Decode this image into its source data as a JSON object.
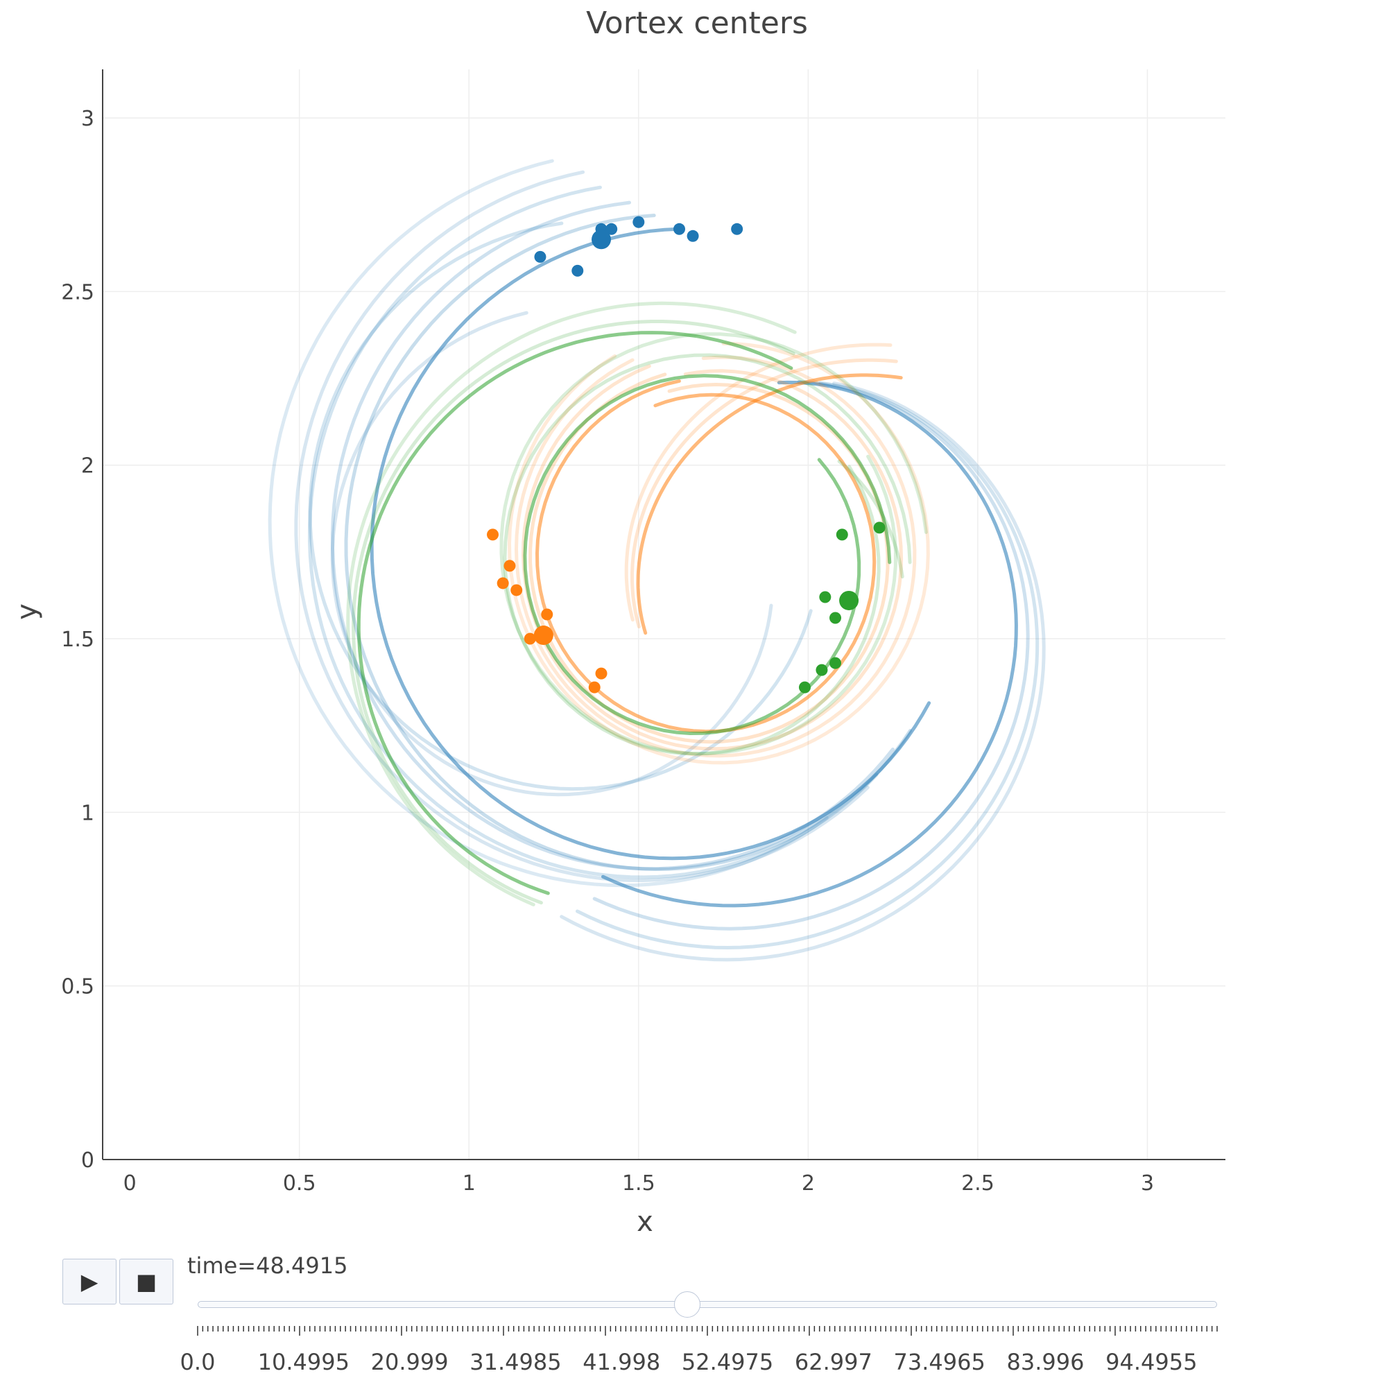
{
  "chart_data": {
    "type": "scatter",
    "title": "Vortex centers",
    "xlabel": "x",
    "ylabel": "y",
    "xlim": [
      -0.08,
      3.23
    ],
    "ylim": [
      0,
      3.14
    ],
    "xticks": [
      "0",
      "0.5",
      "1",
      "1.5",
      "2",
      "2.5",
      "3"
    ],
    "yticks": [
      "0",
      "0.5",
      "1",
      "1.5",
      "2",
      "2.5",
      "3"
    ],
    "grid": true,
    "series": [
      {
        "color": "#1f77b4",
        "current": {
          "x": 1.39,
          "y": 2.65
        },
        "points": [
          [
            1.21,
            2.6
          ],
          [
            1.32,
            2.56
          ],
          [
            1.39,
            2.68
          ],
          [
            1.42,
            2.68
          ],
          [
            1.5,
            2.7
          ],
          [
            1.62,
            2.68
          ],
          [
            1.66,
            2.66
          ],
          [
            1.79,
            2.68
          ]
        ],
        "trails": [
          {
            "center": [
              1.62,
              1.74
            ],
            "r0": 0.94,
            "r1": 0.85,
            "a0": 90,
            "a1": 330,
            "opacity": 0.55
          },
          {
            "center": [
              1.58,
              1.74
            ],
            "r0": 0.98,
            "r1": 0.88,
            "a0": 92,
            "a1": 325,
            "opacity": 0.25
          },
          {
            "center": [
              1.56,
              1.76
            ],
            "r0": 1.0,
            "r1": 0.9,
            "a0": 95,
            "a1": 320,
            "opacity": 0.22
          },
          {
            "center": [
              1.53,
              1.78
            ],
            "r0": 1.03,
            "r1": 0.95,
            "a0": 98,
            "a1": 315,
            "opacity": 0.2
          },
          {
            "center": [
              1.52,
              1.8
            ],
            "r0": 1.06,
            "r1": 0.98,
            "a0": 100,
            "a1": 312,
            "opacity": 0.18
          },
          {
            "center": [
              1.47,
              1.82
            ],
            "r0": 1.08,
            "r1": 1.02,
            "a0": 102,
            "a1": 305,
            "opacity": 0.16
          },
          {
            "center": [
              1.35,
              1.82
            ],
            "r0": 0.88,
            "r1": 0.7,
            "a0": 95,
            "a1": 340,
            "opacity": 0.2
          },
          {
            "center": [
              1.3,
              1.7
            ],
            "r0": 0.75,
            "r1": 0.6,
            "a0": 100,
            "a1": 350,
            "opacity": 0.18
          },
          {
            "center": [
              1.86,
              1.62
            ],
            "r0": 0.93,
            "r1": 0.62,
            "a0": 240,
            "a1": 445,
            "opacity": 0.55
          },
          {
            "center": [
              1.86,
              1.6
            ],
            "r0": 0.98,
            "r1": 0.65,
            "a0": 240,
            "a1": 440,
            "opacity": 0.22
          },
          {
            "center": [
              1.86,
              1.58
            ],
            "r0": 1.02,
            "r1": 0.68,
            "a0": 238,
            "a1": 435,
            "opacity": 0.2
          },
          {
            "center": [
              1.86,
              1.57
            ],
            "r0": 1.05,
            "r1": 0.7,
            "a0": 236,
            "a1": 432,
            "opacity": 0.18
          }
        ]
      },
      {
        "color": "#ff7f0e",
        "current": {
          "x": 1.22,
          "y": 1.51
        },
        "points": [
          [
            1.07,
            1.8
          ],
          [
            1.12,
            1.71
          ],
          [
            1.1,
            1.66
          ],
          [
            1.14,
            1.64
          ],
          [
            1.23,
            1.57
          ],
          [
            1.18,
            1.5
          ],
          [
            1.39,
            1.4
          ],
          [
            1.37,
            1.36
          ]
        ],
        "trails": [
          {
            "center": [
              1.71,
              1.73
            ],
            "r0": 0.52,
            "r1": 0.47,
            "a0": 100,
            "a1": 470,
            "opacity": 0.55
          },
          {
            "center": [
              1.72,
              1.73
            ],
            "r0": 0.55,
            "r1": 0.5,
            "a0": 105,
            "a1": 465,
            "opacity": 0.22
          },
          {
            "center": [
              1.73,
              1.74
            ],
            "r0": 0.58,
            "r1": 0.53,
            "a0": 110,
            "a1": 460,
            "opacity": 0.2
          },
          {
            "center": [
              1.74,
              1.75
            ],
            "r0": 0.61,
            "r1": 0.56,
            "a0": 115,
            "a1": 455,
            "opacity": 0.18
          },
          {
            "center": [
              1.75,
              1.76
            ],
            "r0": 0.64,
            "r1": 0.59,
            "a0": 120,
            "a1": 450,
            "opacity": 0.16
          },
          {
            "center": [
              2.0,
              1.5
            ],
            "r0": 0.8,
            "r1": 0.48,
            "a0": 70,
            "a1": 178,
            "opacity": 0.55
          },
          {
            "center": [
              2.0,
              1.5
            ],
            "r0": 0.84,
            "r1": 0.5,
            "a0": 72,
            "a1": 176,
            "opacity": 0.2
          },
          {
            "center": [
              2.0,
              1.5
            ],
            "r0": 0.88,
            "r1": 0.52,
            "a0": 74,
            "a1": 174,
            "opacity": 0.18
          }
        ]
      },
      {
        "color": "#2ca02c",
        "current": {
          "x": 2.12,
          "y": 1.61
        },
        "points": [
          [
            2.21,
            1.82
          ],
          [
            2.1,
            1.8
          ],
          [
            2.05,
            1.62
          ],
          [
            2.08,
            1.56
          ],
          [
            2.08,
            1.43
          ],
          [
            2.04,
            1.41
          ],
          [
            1.99,
            1.36
          ]
        ],
        "trails": [
          {
            "center": [
              1.68,
              1.72
            ],
            "r0": 0.56,
            "r1": 0.46,
            "a0": 0,
            "a1": 400,
            "opacity": 0.55
          },
          {
            "center": [
              1.69,
              1.73
            ],
            "r0": 0.59,
            "r1": 0.49,
            "a0": 355,
            "a1": 395,
            "opacity": 0.2
          },
          {
            "center": [
              1.68,
              1.72
            ],
            "r0": 0.62,
            "r1": 0.52,
            "a0": 0,
            "a1": 392,
            "opacity": 0.2
          },
          {
            "center": [
              1.7,
              1.75
            ],
            "r0": 0.65,
            "r1": 0.55,
            "a0": 5,
            "a1": 390,
            "opacity": 0.18
          },
          {
            "center": [
              1.5,
              1.5
            ],
            "r0": 0.9,
            "r1": 0.78,
            "a0": 60,
            "a1": 250,
            "opacity": 0.55
          },
          {
            "center": [
              1.52,
              1.5
            ],
            "r0": 0.93,
            "r1": 0.82,
            "a0": 62,
            "a1": 248,
            "opacity": 0.2
          },
          {
            "center": [
              1.54,
              1.52
            ],
            "r0": 0.96,
            "r1": 0.86,
            "a0": 64,
            "a1": 246,
            "opacity": 0.18
          }
        ]
      }
    ]
  },
  "controls": {
    "play_label": "▶",
    "stop_label": "■",
    "time_prefix": "time=",
    "time_value": "48.4915",
    "current_time": 48.4915,
    "time_range": [
      0.0,
      101.0
    ],
    "step_labels": [
      "0.0",
      "10.4995",
      "20.999",
      "31.4985",
      "41.998",
      "52.4975",
      "62.997",
      "73.4965",
      "83.996",
      "94.4955"
    ],
    "step_count": 200
  }
}
